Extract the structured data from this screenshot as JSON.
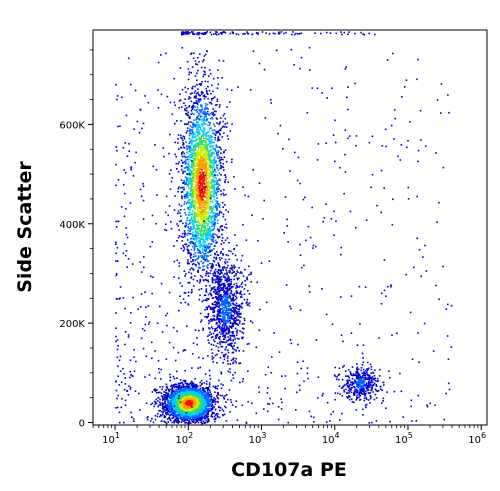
{
  "chart_data": {
    "type": "scatter",
    "subtype": "flow cytometry density dot plot (pseudocolor)",
    "title": "",
    "xlabel": "CD107a PE",
    "ylabel": "Side Scatter",
    "x_scale": "log",
    "xlim": [
      5,
      1200000
    ],
    "ylim": [
      -5000,
      790000
    ],
    "grid": false,
    "legend": "none",
    "x_ticks": [
      {
        "value": 10,
        "base": "10",
        "exp": "1"
      },
      {
        "value": 100,
        "base": "10",
        "exp": "2"
      },
      {
        "value": 1000,
        "base": "10",
        "exp": "3"
      },
      {
        "value": 10000,
        "base": "10",
        "exp": "4"
      },
      {
        "value": 100000,
        "base": "10",
        "exp": "5"
      },
      {
        "value": 1000000,
        "base": "10",
        "exp": "6"
      }
    ],
    "y_ticks": [
      {
        "value": 0,
        "label": "0"
      },
      {
        "value": 200000,
        "label": "200K"
      },
      {
        "value": 400000,
        "label": "400K"
      },
      {
        "value": 600000,
        "label": "600K"
      }
    ],
    "density_colors": [
      "#0000cc",
      "#0066ff",
      "#00ccff",
      "#33dd66",
      "#ccee00",
      "#ff9900",
      "#ee1100"
    ],
    "populations": [
      {
        "name": "",
        "x_center": 150,
        "y_center": 480000,
        "x_spread_decades": 0.14,
        "y_spread": 95000,
        "relative_density": 1.0
      },
      {
        "name": "",
        "x_center": 100,
        "y_center": 40000,
        "x_spread_decades": 0.17,
        "y_spread": 18000,
        "relative_density": 1.0
      },
      {
        "name": "",
        "x_center": 320,
        "y_center": 230000,
        "x_spread_decades": 0.12,
        "y_spread": 50000,
        "relative_density": 0.35
      },
      {
        "name": "",
        "x_center": 22000,
        "y_center": 80000,
        "x_spread_decades": 0.12,
        "y_spread": 18000,
        "relative_density": 0.15
      }
    ]
  }
}
